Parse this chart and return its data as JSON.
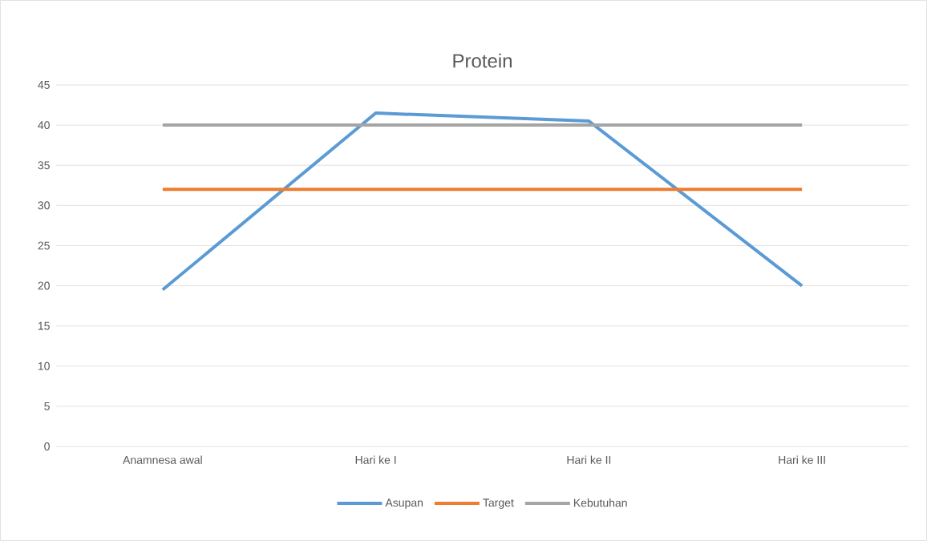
{
  "chart_data": {
    "type": "line",
    "title": "Protein",
    "categories": [
      "Anamnesa awal",
      "Hari ke I",
      "Hari ke II",
      "Hari ke III"
    ],
    "series": [
      {
        "name": "Asupan",
        "color": "#5b9bd5",
        "values": [
          19.5,
          41.5,
          40.5,
          20
        ]
      },
      {
        "name": "Target",
        "color": "#ed7d31",
        "values": [
          32,
          32,
          32,
          32
        ]
      },
      {
        "name": "Kebutuhan",
        "color": "#a5a5a5",
        "values": [
          40,
          40,
          40,
          40
        ]
      }
    ],
    "ylim": [
      0,
      45
    ],
    "yticks": [
      0,
      5,
      10,
      15,
      20,
      25,
      30,
      35,
      40,
      45
    ],
    "grid": "y",
    "legend": "bottom",
    "marker": "none",
    "line_style": "solid"
  }
}
